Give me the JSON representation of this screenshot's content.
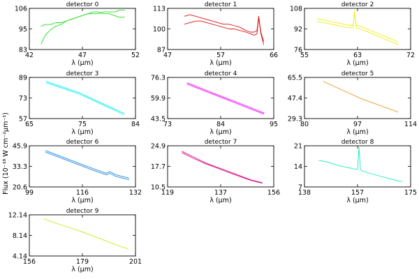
{
  "figure": {
    "ylabel": "Flux (10⁻¹⁸ W cm⁻²μm⁻¹)"
  },
  "chart_data": [
    {
      "type": "line",
      "title": "detector 0",
      "xlabel": "λ (μm)",
      "xlim": [
        42,
        52
      ],
      "ylim": [
        83,
        106
      ],
      "xticks": [
        "42",
        "47",
        "52"
      ],
      "yticks": [
        "83",
        "95",
        "106"
      ],
      "color": "#22dd22",
      "series": [
        {
          "x": [
            43.1,
            43.5,
            44,
            44.5,
            45,
            45.5,
            46,
            46.5,
            47,
            47.5,
            48,
            48.5,
            49,
            49.5,
            50,
            50.5,
            51
          ],
          "values": [
            86,
            91,
            94,
            96,
            97,
            99,
            100,
            101,
            102,
            103,
            103,
            103,
            104,
            104,
            104,
            105,
            105
          ]
        },
        {
          "x": [
            43.1,
            43.5,
            44,
            44.5,
            45,
            45.5,
            46,
            46.5,
            47,
            47.5,
            48,
            48.5,
            49,
            49.5,
            50,
            50.5,
            51
          ],
          "values": [
            96,
            97,
            97,
            98,
            98,
            99,
            100,
            101,
            102,
            103,
            104,
            104,
            103,
            103,
            102,
            101,
            101
          ]
        }
      ]
    },
    {
      "type": "line",
      "title": "detector 1",
      "xlabel": "λ (μm)",
      "xlim": [
        47,
        66
      ],
      "ylim": [
        87,
        113
      ],
      "xticks": [
        "47",
        "57",
        "66"
      ],
      "yticks": [
        "87",
        "100",
        "113"
      ],
      "color": "#dd1111",
      "series": [
        {
          "x": [
            50,
            51,
            52,
            53,
            54,
            55,
            56,
            57,
            58,
            59,
            60,
            61,
            61.8,
            62.5,
            63,
            63.3,
            63.7,
            64.2
          ],
          "values": [
            108,
            109,
            108,
            107,
            106,
            105,
            104,
            103,
            103,
            102,
            101,
            99,
            98,
            98,
            99,
            108,
            98,
            92
          ]
        },
        {
          "x": [
            50,
            51,
            52,
            53,
            54,
            55,
            56,
            57,
            58,
            59,
            60,
            61,
            61.8,
            62.5,
            63,
            63.3,
            63.7,
            64.2
          ],
          "values": [
            103,
            104,
            105,
            105,
            104,
            103,
            102,
            101,
            100,
            100,
            99,
            98,
            97,
            96,
            97,
            107,
            97,
            90
          ]
        }
      ]
    },
    {
      "type": "line",
      "title": "detector 2",
      "xlabel": "λ (μm)",
      "xlim": [
        55,
        72
      ],
      "ylim": [
        76,
        108
      ],
      "xticks": [
        "55",
        "63",
        "72"
      ],
      "yticks": [
        "76",
        "92",
        "108"
      ],
      "color": "#eeee11",
      "series": [
        {
          "x": [
            57,
            58,
            59,
            60,
            61,
            62,
            62.5,
            62.8,
            63,
            63.3,
            64,
            65,
            66,
            67,
            68,
            69,
            70
          ],
          "values": [
            100,
            99,
            98,
            97,
            96,
            95,
            95,
            95,
            104,
            95,
            94,
            92,
            90,
            88,
            86,
            84,
            82
          ]
        },
        {
          "x": [
            57,
            58,
            59,
            60,
            61,
            62,
            62.5,
            62.8,
            63,
            63.3,
            64,
            65,
            66,
            67,
            68,
            69,
            70
          ],
          "values": [
            98,
            97,
            96,
            95,
            94,
            93,
            93,
            93,
            106,
            93,
            92,
            90,
            88,
            86,
            84,
            82,
            80
          ]
        }
      ]
    },
    {
      "type": "line",
      "title": "detector 3",
      "xlabel": "λ (μm)",
      "xlim": [
        65,
        84
      ],
      "ylim": [
        57,
        89
      ],
      "xticks": [
        "65",
        "75",
        "84"
      ],
      "yticks": [
        "57",
        "73",
        "89"
      ],
      "color": "#11eeee",
      "series": [
        {
          "x": [
            68,
            70,
            72,
            74,
            76,
            78,
            80,
            82
          ],
          "values": [
            86,
            83,
            80,
            77,
            73,
            69,
            65,
            61
          ]
        },
        {
          "x": [
            68,
            70,
            72,
            74,
            76,
            78,
            80,
            82
          ],
          "values": [
            85,
            82,
            79,
            76,
            72,
            68,
            64,
            60
          ]
        }
      ]
    },
    {
      "type": "line",
      "title": "detector 4",
      "xlabel": "λ (μm)",
      "xlim": [
        73,
        95
      ],
      "ylim": [
        43.5,
        76.3
      ],
      "xticks": [
        "73",
        "84",
        "95"
      ],
      "yticks": [
        "43.5",
        "59.9",
        "76.3"
      ],
      "color": "#ee11ee",
      "series": [
        {
          "x": [
            77,
            79,
            81,
            83,
            85,
            87,
            89,
            91,
            93
          ],
          "values": [
            72,
            69,
            66,
            63,
            60,
            57,
            54,
            51,
            48
          ]
        },
        {
          "x": [
            77,
            79,
            81,
            83,
            85,
            87,
            89,
            91,
            93
          ],
          "values": [
            71,
            68,
            65,
            62,
            59,
            56,
            53,
            50,
            47
          ]
        }
      ]
    },
    {
      "type": "line",
      "title": "detector 5",
      "xlabel": "λ (μm)",
      "xlim": [
        80,
        114
      ],
      "ylim": [
        29.3,
        65.5
      ],
      "xticks": [
        "80",
        "97",
        "114"
      ],
      "yticks": [
        "29.3",
        "47.4",
        "65.5"
      ],
      "color": "#ee9922",
      "series": [
        {
          "x": [
            86,
            90,
            94,
            98,
            102,
            106,
            110
          ],
          "values": [
            62,
            57,
            52,
            47,
            43,
            39,
            35
          ]
        }
      ]
    },
    {
      "type": "line",
      "title": "detector 6",
      "xlabel": "λ (μm)",
      "xlim": [
        99,
        132
      ],
      "ylim": [
        20.6,
        45.9
      ],
      "xticks": [
        "99",
        "116",
        "132"
      ],
      "yticks": [
        "20.6",
        "33.3",
        "45.9"
      ],
      "color": "#2288dd",
      "series": [
        {
          "x": [
            104,
            108,
            112,
            116,
            120,
            123,
            124,
            126,
            128,
            130
          ],
          "values": [
            43,
            40,
            37,
            34,
            31,
            29,
            30,
            28,
            27,
            26
          ]
        },
        {
          "x": [
            104,
            108,
            112,
            116,
            120,
            123,
            124,
            126,
            128,
            130
          ],
          "values": [
            42,
            39,
            36,
            33,
            30,
            28,
            29,
            27,
            26,
            25
          ]
        }
      ]
    },
    {
      "type": "line",
      "title": "detector 7",
      "xlabel": "λ (μm)",
      "xlim": [
        119,
        156
      ],
      "ylim": [
        10.5,
        24.9
      ],
      "xticks": [
        "119",
        "137",
        "156"
      ],
      "yticks": [
        "10.5",
        "17.7",
        "24.9"
      ],
      "color": "#dd1188",
      "series": [
        {
          "x": [
            124,
            128,
            132,
            136,
            140,
            144,
            148,
            152
          ],
          "values": [
            23,
            21,
            19,
            17.5,
            16,
            14.5,
            13,
            12
          ]
        },
        {
          "x": [
            124,
            128,
            132,
            136,
            140,
            144,
            148,
            152
          ],
          "values": [
            22.5,
            20.5,
            18.7,
            17.2,
            15.7,
            14.2,
            12.8,
            11.8
          ]
        }
      ]
    },
    {
      "type": "line",
      "title": "detector 8",
      "xlabel": "λ (μm)",
      "xlim": [
        138,
        175
      ],
      "ylim": [
        7,
        21
      ],
      "xticks": [
        "138",
        "157",
        "175"
      ],
      "yticks": [
        "7",
        "14",
        "21"
      ],
      "color": "#11eebb",
      "series": [
        {
          "x": [
            143,
            146,
            149,
            152,
            155,
            156.5,
            157,
            157.5,
            158,
            161,
            164,
            167,
            170,
            172
          ],
          "values": [
            16,
            15.5,
            14.5,
            13.8,
            13.2,
            13,
            20.5,
            13,
            12.5,
            11.5,
            10.8,
            10,
            9.2,
            8.8
          ]
        }
      ]
    },
    {
      "type": "line",
      "title": "detector 9",
      "xlabel": "λ (μm)",
      "xlim": [
        156,
        201
      ],
      "ylim": [
        4.14,
        12.14
      ],
      "xticks": [
        "156",
        "179",
        "201"
      ],
      "yticks": [
        "4.14",
        "8.14",
        "12.14"
      ],
      "color": "#bbee11",
      "series": [
        {
          "x": [
            162,
            166,
            170,
            174,
            178,
            182,
            186,
            190,
            194,
            198
          ],
          "values": [
            11.4,
            10.7,
            10.1,
            9.5,
            8.9,
            8.2,
            7.5,
            6.8,
            6.1,
            5.5
          ]
        }
      ]
    }
  ]
}
